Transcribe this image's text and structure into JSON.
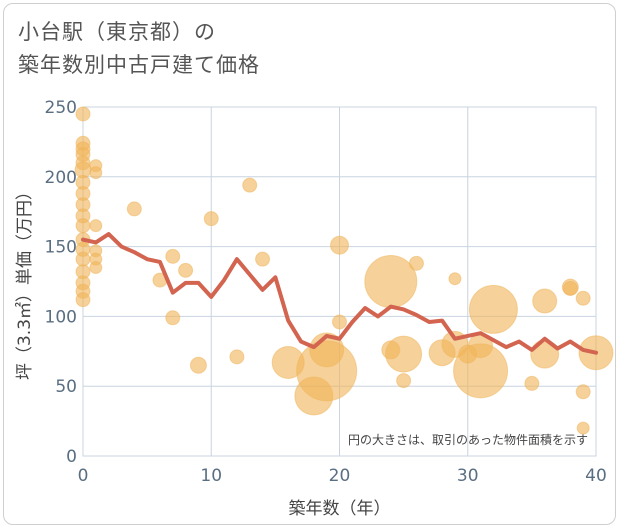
{
  "title": {
    "line1": "小台駅（東京都）の",
    "line2": "築年数別中古戸建て価格"
  },
  "chart_data": {
    "type": "scatter",
    "xlabel": "築年数（年）",
    "ylabel": "坪（3.3㎡）単価（万円）",
    "xlim": [
      0,
      40
    ],
    "ylim": [
      0,
      250
    ],
    "x_ticks": [
      "0",
      "10",
      "20",
      "30",
      "40"
    ],
    "y_ticks": [
      "0",
      "50",
      "100",
      "150",
      "200",
      "250"
    ],
    "grid": true,
    "note": "円の大きさは、取引のあった物件面積を示す",
    "colors": {
      "bubble": "#f0b45a",
      "line": "#d26450",
      "grid": "#c8d4e0"
    },
    "bubbles": [
      {
        "x": 0,
        "y": 245,
        "r": 7
      },
      {
        "x": 0,
        "y": 224,
        "r": 7
      },
      {
        "x": 0,
        "y": 220,
        "r": 7
      },
      {
        "x": 0,
        "y": 216,
        "r": 7
      },
      {
        "x": 0,
        "y": 210,
        "r": 7
      },
      {
        "x": 0,
        "y": 205,
        "r": 8
      },
      {
        "x": 0,
        "y": 196,
        "r": 7
      },
      {
        "x": 0,
        "y": 188,
        "r": 7
      },
      {
        "x": 0,
        "y": 180,
        "r": 7
      },
      {
        "x": 0,
        "y": 172,
        "r": 7
      },
      {
        "x": 0,
        "y": 165,
        "r": 7
      },
      {
        "x": 0,
        "y": 155,
        "r": 7
      },
      {
        "x": 0,
        "y": 148,
        "r": 7
      },
      {
        "x": 0,
        "y": 141,
        "r": 7
      },
      {
        "x": 0,
        "y": 132,
        "r": 7
      },
      {
        "x": 0,
        "y": 124,
        "r": 7
      },
      {
        "x": 0,
        "y": 118,
        "r": 7
      },
      {
        "x": 0,
        "y": 112,
        "r": 7
      },
      {
        "x": 1,
        "y": 208,
        "r": 6
      },
      {
        "x": 1,
        "y": 203,
        "r": 6
      },
      {
        "x": 1,
        "y": 165,
        "r": 6
      },
      {
        "x": 1,
        "y": 147,
        "r": 6
      },
      {
        "x": 1,
        "y": 141,
        "r": 6
      },
      {
        "x": 1,
        "y": 135,
        "r": 6
      },
      {
        "x": 4,
        "y": 177,
        "r": 7
      },
      {
        "x": 6,
        "y": 126,
        "r": 7
      },
      {
        "x": 7,
        "y": 143,
        "r": 7
      },
      {
        "x": 7,
        "y": 99,
        "r": 7
      },
      {
        "x": 8,
        "y": 133,
        "r": 7
      },
      {
        "x": 9,
        "y": 65,
        "r": 8
      },
      {
        "x": 10,
        "y": 170,
        "r": 7
      },
      {
        "x": 12,
        "y": 71,
        "r": 7
      },
      {
        "x": 13,
        "y": 194,
        "r": 7
      },
      {
        "x": 14,
        "y": 141,
        "r": 7
      },
      {
        "x": 16,
        "y": 67,
        "r": 16
      },
      {
        "x": 18,
        "y": 43,
        "r": 19
      },
      {
        "x": 19,
        "y": 76,
        "r": 17
      },
      {
        "x": 19,
        "y": 61,
        "r": 30
      },
      {
        "x": 20,
        "y": 151,
        "r": 9
      },
      {
        "x": 20,
        "y": 96,
        "r": 7
      },
      {
        "x": 24,
        "y": 125,
        "r": 26
      },
      {
        "x": 24,
        "y": 76,
        "r": 9
      },
      {
        "x": 25,
        "y": 73,
        "r": 18
      },
      {
        "x": 25,
        "y": 54,
        "r": 7
      },
      {
        "x": 26,
        "y": 138,
        "r": 7
      },
      {
        "x": 28,
        "y": 74,
        "r": 13
      },
      {
        "x": 29,
        "y": 127,
        "r": 6
      },
      {
        "x": 29,
        "y": 80,
        "r": 13
      },
      {
        "x": 30,
        "y": 73,
        "r": 9
      },
      {
        "x": 31,
        "y": 79,
        "r": 12
      },
      {
        "x": 31,
        "y": 61,
        "r": 27
      },
      {
        "x": 32,
        "y": 105,
        "r": 24
      },
      {
        "x": 35,
        "y": 52,
        "r": 7
      },
      {
        "x": 36,
        "y": 111,
        "r": 12
      },
      {
        "x": 36,
        "y": 73,
        "r": 14
      },
      {
        "x": 38,
        "y": 121,
        "r": 8
      },
      {
        "x": 38,
        "y": 120,
        "r": 7
      },
      {
        "x": 39,
        "y": 113,
        "r": 7
      },
      {
        "x": 39,
        "y": 46,
        "r": 7
      },
      {
        "x": 39,
        "y": 20,
        "r": 6
      },
      {
        "x": 40,
        "y": 74,
        "r": 17
      }
    ],
    "line": {
      "x": [
        0,
        1,
        2,
        3,
        4,
        5,
        6,
        7,
        8,
        9,
        10,
        11,
        12,
        13,
        14,
        15,
        16,
        17,
        18,
        19,
        20,
        21,
        22,
        23,
        24,
        25,
        26,
        27,
        28,
        29,
        30,
        31,
        32,
        33,
        34,
        35,
        36,
        37,
        38,
        39,
        40
      ],
      "y": [
        155,
        153,
        159,
        150,
        146,
        141,
        139,
        117,
        124,
        124,
        114,
        126,
        141,
        130,
        119,
        128,
        97,
        82,
        78,
        86,
        84,
        96,
        106,
        100,
        107,
        105,
        101,
        96,
        97,
        84,
        86,
        88,
        83,
        78,
        82,
        76,
        84,
        77,
        82,
        76,
        74
      ]
    }
  }
}
